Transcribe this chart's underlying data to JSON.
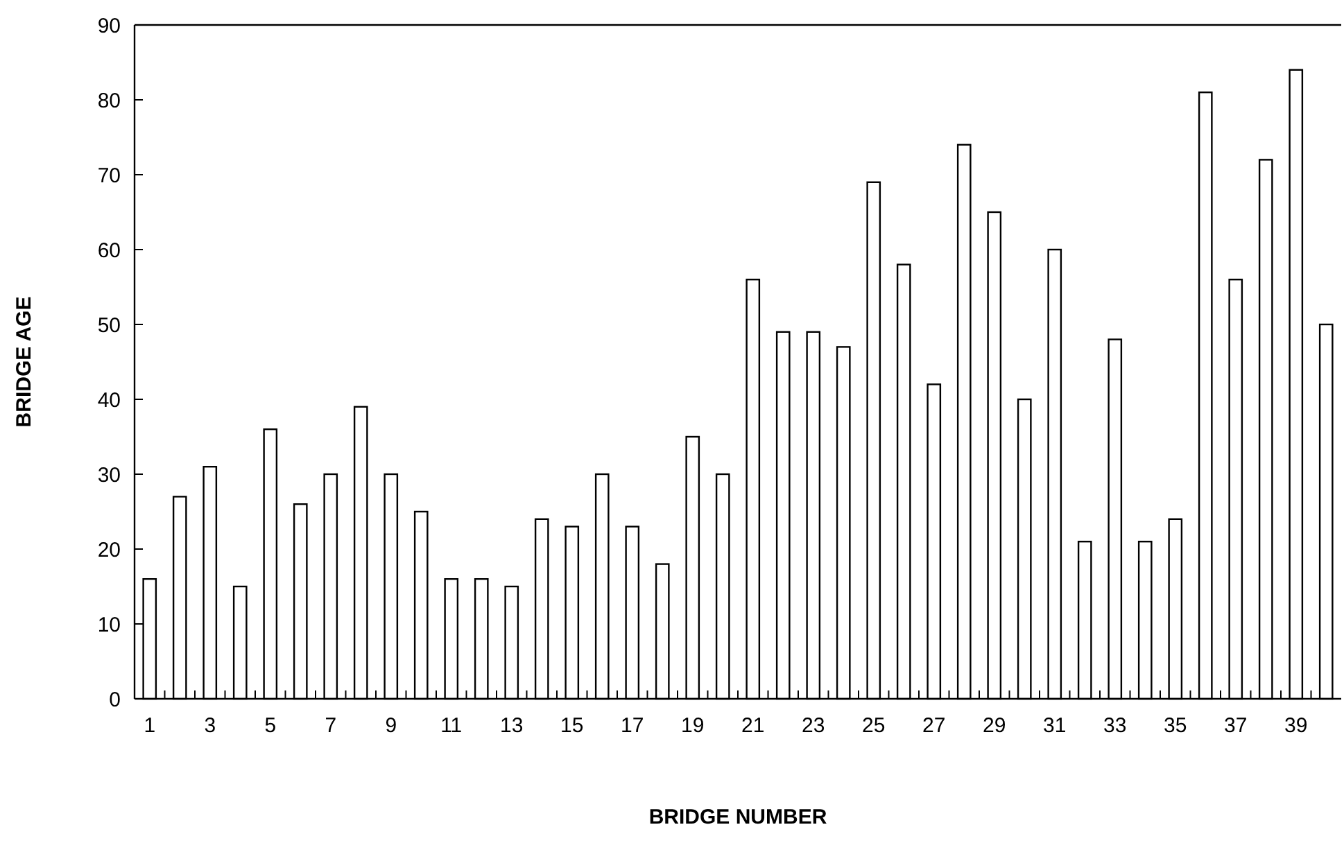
{
  "chart_data": {
    "type": "bar",
    "xlabel": "BRIDGE NUMBER",
    "ylabel": "BRIDGE AGE",
    "x": [
      1,
      2,
      3,
      4,
      5,
      6,
      7,
      8,
      9,
      10,
      11,
      12,
      13,
      14,
      15,
      16,
      17,
      18,
      19,
      20,
      21,
      22,
      23,
      24,
      25,
      26,
      27,
      28,
      29,
      30,
      31,
      32,
      33,
      34,
      35,
      36,
      37,
      38,
      39,
      40
    ],
    "values": [
      16,
      27,
      31,
      15,
      36,
      26,
      30,
      39,
      30,
      25,
      16,
      16,
      15,
      24,
      23,
      30,
      23,
      18,
      35,
      30,
      56,
      49,
      49,
      47,
      69,
      58,
      42,
      74,
      65,
      40,
      60,
      21,
      48,
      21,
      24,
      81,
      56,
      72,
      84,
      50
    ],
    "color": "#ffffff",
    "xlim": [
      0.5,
      40.5
    ],
    "xticks": [
      1,
      3,
      5,
      7,
      9,
      11,
      13,
      15,
      17,
      19,
      21,
      23,
      25,
      27,
      29,
      31,
      33,
      35,
      37,
      39
    ],
    "ylim": [
      0,
      90
    ],
    "yticks": [
      0,
      10,
      20,
      30,
      40,
      50,
      60,
      70,
      80,
      90
    ]
  }
}
